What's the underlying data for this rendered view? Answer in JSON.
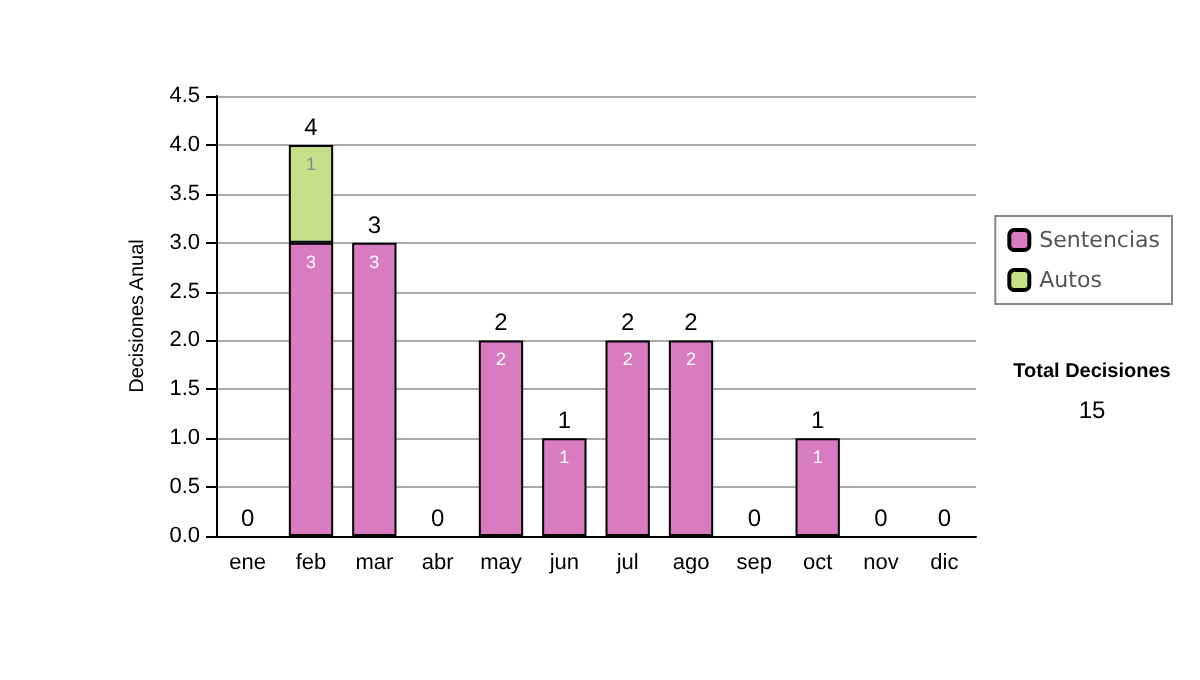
{
  "chart_data": {
    "type": "bar",
    "stacked": true,
    "ylabel": "Decisiones Anual",
    "categories": [
      "ene",
      "feb",
      "mar",
      "abr",
      "may",
      "jun",
      "jul",
      "ago",
      "sep",
      "oct",
      "nov",
      "dic"
    ],
    "series": [
      {
        "name": "Sentencias",
        "color": "#d97bc0",
        "values": [
          0,
          3,
          3,
          0,
          2,
          1,
          2,
          2,
          0,
          1,
          0,
          0
        ],
        "value_labels": [
          null,
          "3",
          "3",
          null,
          "2",
          "1",
          "2",
          "2",
          null,
          "1",
          null,
          null
        ]
      },
      {
        "name": "Autos",
        "color": "#c6e08a",
        "values": [
          0,
          1,
          0,
          0,
          0,
          0,
          0,
          0,
          0,
          0,
          0,
          0
        ],
        "value_labels": [
          null,
          "1",
          null,
          null,
          null,
          null,
          null,
          null,
          null,
          null,
          null,
          null
        ]
      }
    ],
    "totals": [
      "0",
      "4",
      "3",
      "0",
      "2",
      "1",
      "2",
      "2",
      "0",
      "1",
      "0",
      "0"
    ],
    "ylim": [
      0,
      4.5
    ],
    "yticks": [
      {
        "value": 0,
        "label": "0.0"
      },
      {
        "value": 0.5,
        "label": "0.5"
      },
      {
        "value": 1,
        "label": "1.0"
      },
      {
        "value": 1.5,
        "label": "1.5"
      },
      {
        "value": 2,
        "label": "2.0"
      },
      {
        "value": 2.5,
        "label": "2.5"
      },
      {
        "value": 3,
        "label": "3.0"
      },
      {
        "value": 3.5,
        "label": "3.5"
      },
      {
        "value": 4,
        "label": "4.0"
      },
      {
        "value": 4.5,
        "label": "4.5"
      }
    ],
    "grid": "y",
    "legend": "right",
    "annotations": [
      "Total Decisiones",
      "15"
    ]
  }
}
